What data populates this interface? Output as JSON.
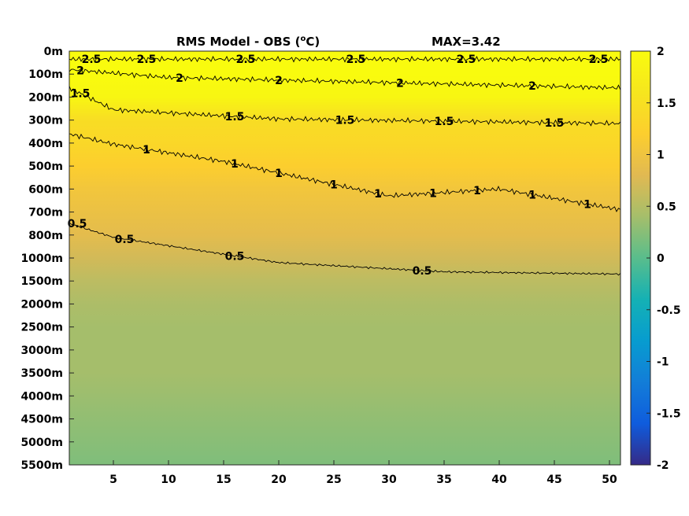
{
  "chart_data": {
    "type": "heatmap",
    "title": "RMS Model - OBS (",
    "title_unit_sup": "o",
    "title_unit_tail": "C)",
    "max_label": "MAX=3.42",
    "xlabel": "",
    "ylabel": "",
    "xlim": [
      1,
      51
    ],
    "x_ticks": [
      5,
      10,
      15,
      20,
      25,
      30,
      35,
      40,
      45,
      50
    ],
    "y_labels": [
      "0m",
      "100m",
      "200m",
      "300m",
      "400m",
      "500m",
      "600m",
      "700m",
      "800m",
      "1000m",
      "1500m",
      "2000m",
      "2500m",
      "3000m",
      "3500m",
      "4000m",
      "4500m",
      "5000m",
      "5500m"
    ],
    "colorbar": {
      "range": [
        -2,
        2
      ],
      "ticks": [
        "2",
        "1.5",
        "1",
        "0.5",
        "0",
        "-0.5",
        "-1",
        "-1.5",
        "-2"
      ],
      "colormap": "parula"
    },
    "depth_profile": [
      2.6,
      2.3,
      1.9,
      1.45,
      1.35,
      1.2,
      1.05,
      0.95,
      0.85,
      0.7,
      0.55,
      0.45,
      0.4,
      0.4,
      0.4,
      0.35,
      0.3,
      0.25,
      0.2
    ],
    "contours": [
      {
        "level": 2.5,
        "label": "2.5",
        "y_level_at_x": [
          [
            1,
            0.35
          ],
          [
            51,
            0.35
          ]
        ],
        "label_x": [
          3,
          8,
          17,
          27,
          37,
          49
        ]
      },
      {
        "level": 2,
        "label": "2",
        "y_level_at_x": [
          [
            1,
            0.8
          ],
          [
            10,
            1.15
          ],
          [
            51,
            1.6
          ]
        ],
        "label_x": [
          2,
          11,
          20,
          31,
          43
        ]
      },
      {
        "level": 1.5,
        "label": "1.5",
        "y_level_at_x": [
          [
            1,
            1.6
          ],
          [
            5,
            2.55
          ],
          [
            20,
            2.95
          ],
          [
            51,
            3.15
          ]
        ],
        "label_x": [
          2,
          16,
          26,
          35,
          45
        ]
      },
      {
        "level": 1,
        "label": "1",
        "y_level_at_x": [
          [
            1,
            3.6
          ],
          [
            5,
            4.05
          ],
          [
            15,
            4.8
          ],
          [
            30,
            6.3
          ],
          [
            40,
            6.0
          ],
          [
            51,
            6.9
          ]
        ],
        "label_x": [
          8,
          16,
          20,
          25,
          29,
          34,
          38,
          43,
          48
        ]
      },
      {
        "level": 0.5,
        "label": "0.5",
        "y_level_at_x": [
          [
            1,
            7.5
          ],
          [
            5,
            8.1
          ],
          [
            20,
            9.2
          ],
          [
            35,
            9.6
          ],
          [
            51,
            9.7
          ]
        ],
        "label_x": [
          1,
          6,
          16,
          33
        ]
      }
    ]
  }
}
